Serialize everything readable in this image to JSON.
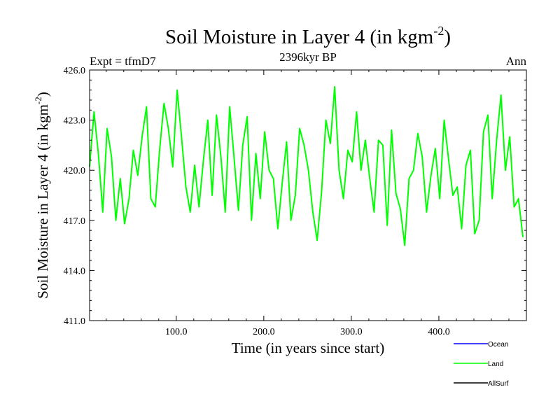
{
  "chart_data": {
    "type": "line",
    "title": "Soil Moisture in Layer 4 (in kgm",
    "title_sup": "-2",
    "title_close": ")",
    "subtitle": "2396kyr BP",
    "left_label": "Expt = tfmD7",
    "right_label": "Ann",
    "xlabel": "Time (in years since start)",
    "ylabel": "Soil Moisture in Layer 4 (in kgm",
    "ylabel_sup": "-2",
    "ylabel_close": ")",
    "xlim": [
      1,
      500
    ],
    "ylim": [
      411.0,
      426.0
    ],
    "xticks": [
      100,
      200,
      300,
      400
    ],
    "xtick_labels": [
      "100.0",
      "200.0",
      "300.0",
      "400.0"
    ],
    "yticks": [
      411,
      414,
      417,
      420,
      423,
      426
    ],
    "ytick_labels": [
      "411.0",
      "414.0",
      "417.0",
      "420.0",
      "423.0",
      "426.0"
    ],
    "legend": [
      {
        "name": "Ocean",
        "color": "#0000ff"
      },
      {
        "name": "Land",
        "color": "#00ff00"
      },
      {
        "name": "AllSurf",
        "color": "#000000"
      }
    ],
    "series": [
      {
        "name": "Land",
        "color": "#00ff00",
        "x_start": 1,
        "x_step": 5,
        "values": [
          420.2,
          423.5,
          421.0,
          417.5,
          422.5,
          420.8,
          417.0,
          419.5,
          416.8,
          418.3,
          421.2,
          419.7,
          422.0,
          423.8,
          418.3,
          417.8,
          421.2,
          424.0,
          422.5,
          420.2,
          424.8,
          422.0,
          419.0,
          417.5,
          420.3,
          417.8,
          420.6,
          423.0,
          418.5,
          423.3,
          420.8,
          417.5,
          423.8,
          420.8,
          417.6,
          421.5,
          423.2,
          417.0,
          421.0,
          418.3,
          422.3,
          420.0,
          419.5,
          416.5,
          419.2,
          421.7,
          417.0,
          418.5,
          422.5,
          421.5,
          420.0,
          417.5,
          415.8,
          418.7,
          423.0,
          421.6,
          425.0,
          420.0,
          418.3,
          421.2,
          420.5,
          423.5,
          420.0,
          421.8,
          419.5,
          417.5,
          421.8,
          421.5,
          416.7,
          422.4,
          418.6,
          417.7,
          415.5,
          419.5,
          420.0,
          422.2,
          420.8,
          417.5,
          419.7,
          421.3,
          418.3,
          423.0,
          420.7,
          418.5,
          419.0,
          416.5,
          420.3,
          421.2,
          416.2,
          417.0,
          422.3,
          423.3,
          418.3,
          421.8,
          424.5,
          420.0,
          422.0,
          417.8,
          418.3,
          416.0
        ]
      }
    ]
  }
}
